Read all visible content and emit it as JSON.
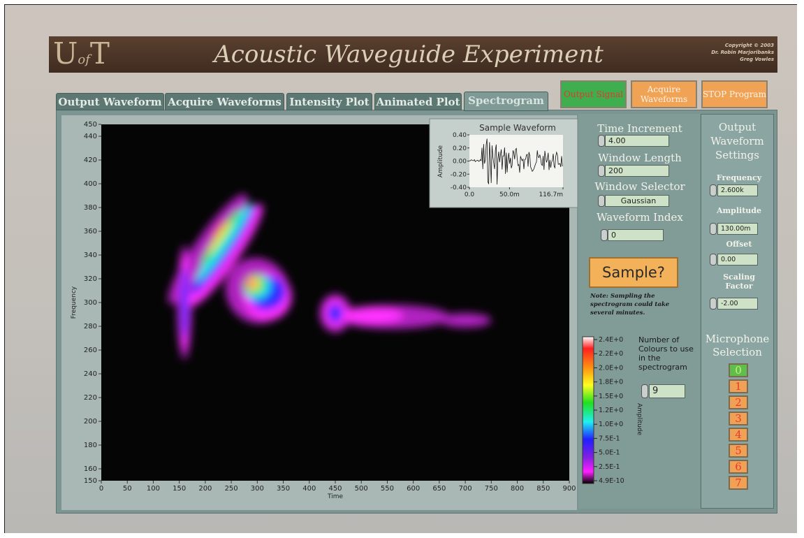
{
  "header": {
    "logo": [
      "U",
      "of",
      "T"
    ],
    "title": "Acoustic Waveguide Experiment",
    "copyright": [
      "Copyright © 2003",
      "Dr. Robin Marjoribanks",
      "Greg Vowles"
    ]
  },
  "tabs": [
    {
      "label": "Output Waveform",
      "active": false
    },
    {
      "label": "Acquire Waveforms",
      "active": false
    },
    {
      "label": "Intensity Plot",
      "active": false
    },
    {
      "label": "Animated Plot",
      "active": false
    },
    {
      "label": "Spectrogram",
      "active": true
    }
  ],
  "buttons": [
    {
      "label": "Output Signal",
      "color": "#3fae4f"
    },
    {
      "label": "Acquire Waveforms",
      "color": "#f0a355"
    },
    {
      "label": "STOP Program",
      "color": "#f0a355"
    }
  ],
  "spectrogram": {
    "x_label": "Time",
    "y_label": "Frequency",
    "xlim": [
      0,
      900
    ],
    "ylim": [
      150,
      450
    ],
    "xticks": [
      0,
      50,
      100,
      150,
      200,
      250,
      300,
      350,
      400,
      450,
      500,
      550,
      600,
      650,
      700,
      750,
      800,
      850,
      900
    ],
    "yticks": [
      150,
      160,
      180,
      200,
      220,
      240,
      260,
      280,
      300,
      320,
      340,
      360,
      380,
      400,
      420,
      440,
      450
    ]
  },
  "sample_waveform": {
    "title": "Sample Waveform",
    "y_label": "Amplitude",
    "xlim": [
      0,
      0.1167
    ],
    "ylim": [
      -0.4,
      0.4
    ],
    "yticks": [
      {
        "value": 0.4,
        "label": "0.40"
      },
      {
        "value": 0.2,
        "label": "0.20"
      },
      {
        "value": 0,
        "label": "0.00"
      },
      {
        "value": -0.2,
        "label": "-0.20"
      },
      {
        "value": -0.4,
        "label": "-0.40"
      }
    ],
    "xticks": [
      {
        "value": 0,
        "label": "0.0"
      },
      {
        "value": 0.05,
        "label": "50.0m"
      },
      {
        "value": 0.1167,
        "label": "116.7m"
      }
    ]
  },
  "controls": [
    {
      "label": "Time Increment",
      "value": "4.00"
    },
    {
      "label": "Window Length",
      "value": "200"
    },
    {
      "label": "Window Selector",
      "value": "Gaussian"
    },
    {
      "label": "Waveform Index",
      "value": "0"
    }
  ],
  "sample_button": "Sample?",
  "note": "Note: Sampling the spectrogram could take several minutes.",
  "colorbar": {
    "label": "Amplitude",
    "ticks": [
      "2.4E+0",
      "2.2E+0",
      "2.0E+0",
      "1.8E+0",
      "1.5E+0",
      "1.2E+0",
      "1.0E+0",
      "7.5E-1",
      "5.0E-1",
      "2.5E-1",
      "4.9E-10"
    ]
  },
  "colours": {
    "label": "Number of Colours to use in the spectrogram",
    "value": "9"
  },
  "output_settings": {
    "title": "Output Waveform Settings",
    "fields": [
      {
        "label": "Frequency",
        "value": "2.600k"
      },
      {
        "label": "Amplitude",
        "value": "130.00m"
      },
      {
        "label": "Offset",
        "value": "0.00"
      },
      {
        "label": "Scaling Factor",
        "value": "-2.00"
      }
    ]
  },
  "microphone": {
    "title": "Microphone Selection",
    "options": [
      "0",
      "1",
      "2",
      "3",
      "4",
      "5",
      "6",
      "7"
    ],
    "selected": 0
  }
}
